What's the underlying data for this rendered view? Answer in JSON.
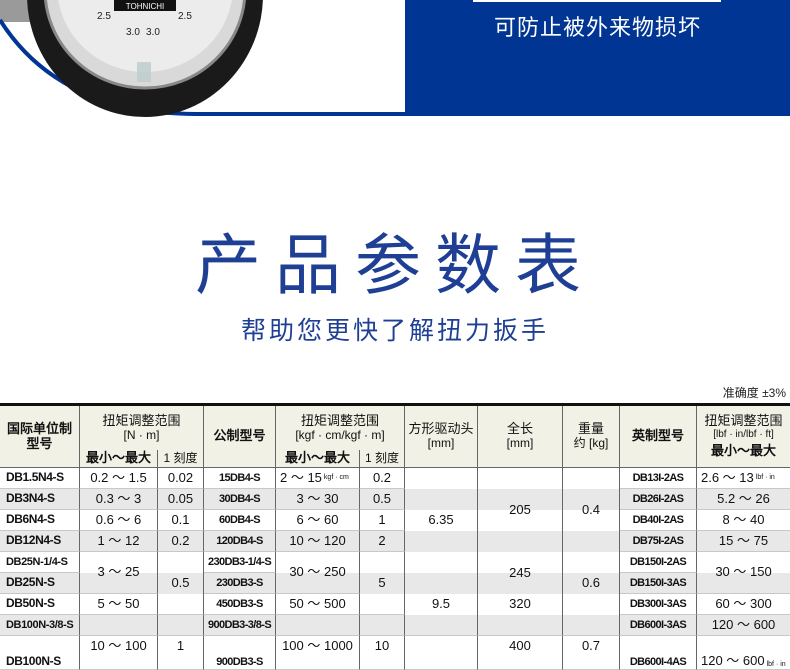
{
  "banner": {
    "text": "可防止被外来物损坏",
    "gauge_labels": [
      "2.5",
      "3.0",
      "3.0",
      "2.5"
    ],
    "gauge_brand": "TOHNICHI",
    "accent": "#003594"
  },
  "title": "产品参数表",
  "subtitle": "帮助您更快了解扭力扳手",
  "accuracy": "准确度 ±3%",
  "table": {
    "headers": {
      "si_model": "国际单位制\n型号",
      "nm_range": "扭矩调整范围",
      "nm_unit": "[N · m]",
      "min_max": "最小～最大",
      "graduation": "1 刻度",
      "metric_model": "公制型号",
      "kgf_range": "扭矩调整范围",
      "kgf_unit": "[kgf · cm/kgf · m]",
      "square_drive": "方形驱动头",
      "square_drive_unit": "[mm]",
      "length": "全长",
      "length_unit": "[mm]",
      "weight": "重量",
      "weight_unit": "约 [kg]",
      "imperial_model": "英制型号",
      "lbf_range": "扭矩调整范围",
      "lbf_unit": "[lbf · in/lbf · ft]"
    },
    "si_model": [
      "DB1.5N4-S",
      "DB3N4-S",
      "DB6N4-S",
      "DB12N4-S",
      "DB25N-1/4-S",
      "DB25N-S",
      "DB50N-S",
      "DB100N-3/8-S",
      "DB100N-S"
    ],
    "nm_range": [
      "0.2 ～ 1.5",
      "0.3 ～ 3",
      "0.6 ～ 6",
      "1 ～ 12",
      "3 ～ 25",
      "5 ～ 50",
      "10 ～ 100"
    ],
    "nm_graduation": [
      "0.02",
      "0.05",
      "0.1",
      "0.2",
      "0.5",
      "1"
    ],
    "metric_model": [
      "15DB4-S",
      "30DB4-S",
      "60DB4-S",
      "120DB4-S",
      "230DB3-1/4-S",
      "230DB3-S",
      "450DB3-S",
      "900DB3-3/8-S",
      "900DB3-S"
    ],
    "kgf_range": [
      "2 ～ 15",
      "3 ～ 30",
      "6 ～ 60",
      "10 ～ 120",
      "30 ～ 250",
      "50 ～ 500",
      "100 ～ 1000"
    ],
    "kgf_unit_note": "kgf · cm",
    "kgf_graduation": [
      "0.2",
      "0.5",
      "1",
      "2",
      "5",
      "10"
    ],
    "square_drive": [
      "6.35",
      "9.5"
    ],
    "length": [
      "205",
      "245",
      "320",
      "400"
    ],
    "weight": [
      "0.4",
      "0.6",
      "0.7"
    ],
    "imperial_model": [
      "DB13I-2AS",
      "DB26I-2AS",
      "DB40I-2AS",
      "DB75I-2AS",
      "DB150I-2AS",
      "DB150I-3AS",
      "DB300I-3AS",
      "DB600I-3AS",
      "DB600I-4AS"
    ],
    "lbf_range": [
      "2.6 ～ 13",
      "5.2 ～ 26",
      "8 ～ 40",
      "15 ～ 75",
      "30 ～ 150",
      "60 ～ 300",
      "120 ～ 600",
      "120 ～ 600"
    ],
    "lbf_unit_note": "lbf · in"
  }
}
